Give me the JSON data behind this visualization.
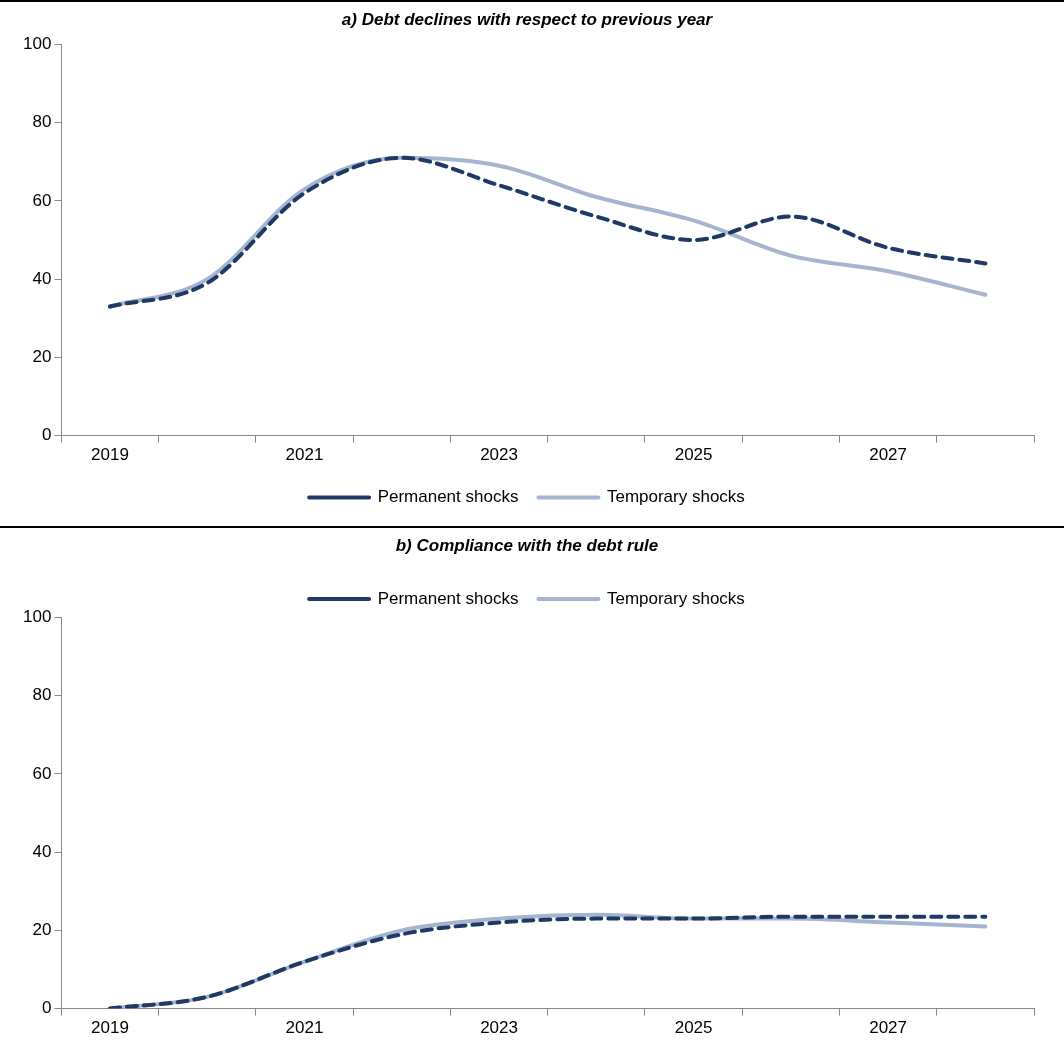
{
  "chart_data": [
    {
      "type": "line",
      "title": "a) Debt declines with respect to previous year",
      "categories": [
        "2019",
        null,
        "2021",
        null,
        "2023",
        null,
        "2025",
        null,
        "2027",
        null
      ],
      "ylim": [
        0,
        100
      ],
      "yticks": [
        0,
        20,
        40,
        60,
        80,
        100
      ],
      "grid": false,
      "legend": "bottom",
      "marker": "none",
      "series": [
        {
          "name": "Permanent shocks",
          "color": "#1f3864",
          "line_style": "dashed",
          "values": [
            33,
            39,
            62,
            71,
            64,
            56,
            50,
            56,
            48,
            44
          ]
        },
        {
          "name": "Temporary shocks",
          "color": "#a6b4cf",
          "line_style": "solid",
          "values": [
            33,
            40,
            63,
            71,
            69,
            61,
            55,
            46,
            42,
            36
          ]
        }
      ]
    },
    {
      "type": "line",
      "title": "b) Compliance with the debt rule",
      "categories": [
        "2019",
        null,
        "2021",
        null,
        "2023",
        null,
        "2025",
        null,
        "2027",
        null
      ],
      "ylim": [
        0,
        100
      ],
      "yticks": [
        0,
        20,
        40,
        60,
        80,
        100
      ],
      "grid": false,
      "legend": "top",
      "marker": "none",
      "series": [
        {
          "name": "Permanent shocks",
          "color": "#1f3864",
          "line_style": "dashed",
          "values": [
            0,
            3,
            12,
            19,
            22,
            23,
            23,
            23.5,
            23.5,
            23.5
          ]
        },
        {
          "name": "Temporary shocks",
          "color": "#a6b4cf",
          "line_style": "solid",
          "values": [
            0,
            3,
            12,
            20,
            23,
            24,
            23,
            23,
            22,
            21
          ]
        }
      ]
    }
  ]
}
